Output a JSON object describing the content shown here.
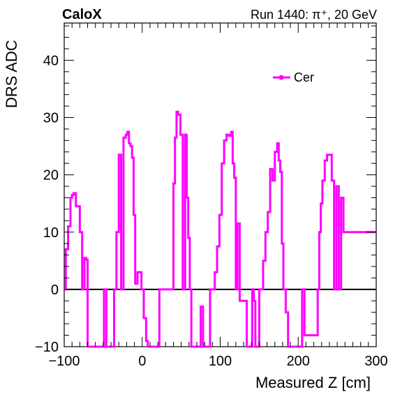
{
  "header": {
    "left": "CaloX",
    "right": "Run 1440:   π⁺, 20 GeV"
  },
  "colors": {
    "series": "#ff00ff",
    "axis": "#000000",
    "zero_line": "#000000"
  },
  "chart_data": {
    "type": "line",
    "style": "step",
    "xlabel": "Measured Z [cm]",
    "ylabel": "DRS ADC",
    "xlim": [
      -100,
      300
    ],
    "ylim": [
      -10,
      46.5
    ],
    "xticks": [
      -100,
      0,
      100,
      200,
      300
    ],
    "xtick_labels": [
      "−100",
      "0",
      "100",
      "200",
      "300"
    ],
    "yticks": [
      -10,
      0,
      10,
      20,
      30,
      40
    ],
    "ytick_labels": [
      "−10",
      "0",
      "10",
      "20",
      "30",
      "40"
    ],
    "zero_line": true,
    "grid": false,
    "legend_position": "top-right",
    "series": [
      {
        "name": "Cer",
        "color": "#ff00ff",
        "x": [
          -100,
          -98,
          -95,
          -92,
          -90,
          -88,
          -85,
          -83,
          -80,
          -77,
          -74,
          -72,
          -70,
          -68,
          -66,
          -64,
          -61,
          -58,
          -55,
          -52,
          -49,
          -46,
          -44,
          -42,
          -39,
          -36,
          -33,
          -30,
          -27,
          -24,
          -21,
          -19,
          -17,
          -15,
          -13,
          -11,
          -9,
          -6,
          -3,
          -1,
          2,
          5,
          7,
          9,
          11,
          13,
          16,
          19,
          22,
          25,
          28,
          31,
          34,
          37,
          40,
          42,
          44,
          46,
          49,
          52,
          55,
          57,
          59,
          61,
          63,
          65,
          67,
          69,
          71,
          73,
          75,
          78,
          81,
          84,
          87,
          90,
          93,
          96,
          99,
          102,
          105,
          108,
          111,
          114,
          116,
          118,
          120,
          122,
          125,
          128,
          131,
          134,
          137,
          139,
          141,
          143,
          145,
          148,
          150,
          152,
          155,
          158,
          161,
          164,
          167,
          170,
          173,
          175,
          177,
          179,
          181,
          184,
          187,
          190,
          193,
          196,
          199,
          202,
          205,
          208,
          211,
          214,
          217,
          220,
          223,
          225,
          227,
          229,
          231,
          234,
          237,
          240,
          243,
          246,
          249,
          252,
          255,
          258,
          261,
          264,
          267,
          270,
          273,
          276,
          279,
          282,
          285,
          288,
          289,
          290,
          291,
          294,
          297,
          300
        ],
        "y": [
          0,
          7,
          11,
          16,
          16.5,
          16.8,
          14.5,
          14.5,
          10,
          0,
          5.5,
          5.2,
          -10,
          -10,
          -10,
          -10,
          -10,
          -10,
          -10,
          -10,
          0,
          -10,
          -10,
          -10,
          -10,
          0,
          10,
          23.5,
          0,
          26.5,
          27,
          27.5,
          25.5,
          25,
          23,
          13,
          1,
          3,
          3,
          0,
          -5,
          -9,
          -10,
          -10,
          -10,
          -10,
          -10,
          -10,
          0,
          0,
          0,
          0,
          0,
          0,
          18.5,
          26.5,
          31,
          30.5,
          27,
          0,
          27,
          16,
          9,
          0,
          -10,
          -10,
          -10,
          -10,
          -10,
          -10,
          -3,
          -10,
          -10,
          -10,
          0,
          0,
          3,
          7.5,
          13,
          22,
          26,
          27,
          26.8,
          27.5,
          22,
          19.5,
          0,
          11.5,
          -2,
          -2,
          -2,
          -10,
          -10,
          -10,
          0,
          -2,
          -10,
          -10,
          0,
          0,
          5,
          10,
          13.5,
          21,
          19,
          24,
          25.5,
          22.5,
          20.5,
          8,
          0,
          -4,
          -10,
          -10,
          -10,
          -10,
          -10,
          -10,
          0,
          -8,
          -8,
          -8,
          -8,
          -8,
          -8,
          0,
          10,
          15,
          19,
          22.5,
          23.5,
          23.5,
          19,
          0,
          18,
          0,
          16,
          10,
          10,
          10,
          10,
          10,
          10,
          10,
          10,
          10,
          10,
          10,
          10,
          10,
          10,
          10,
          10,
          10
        ]
      }
    ]
  }
}
